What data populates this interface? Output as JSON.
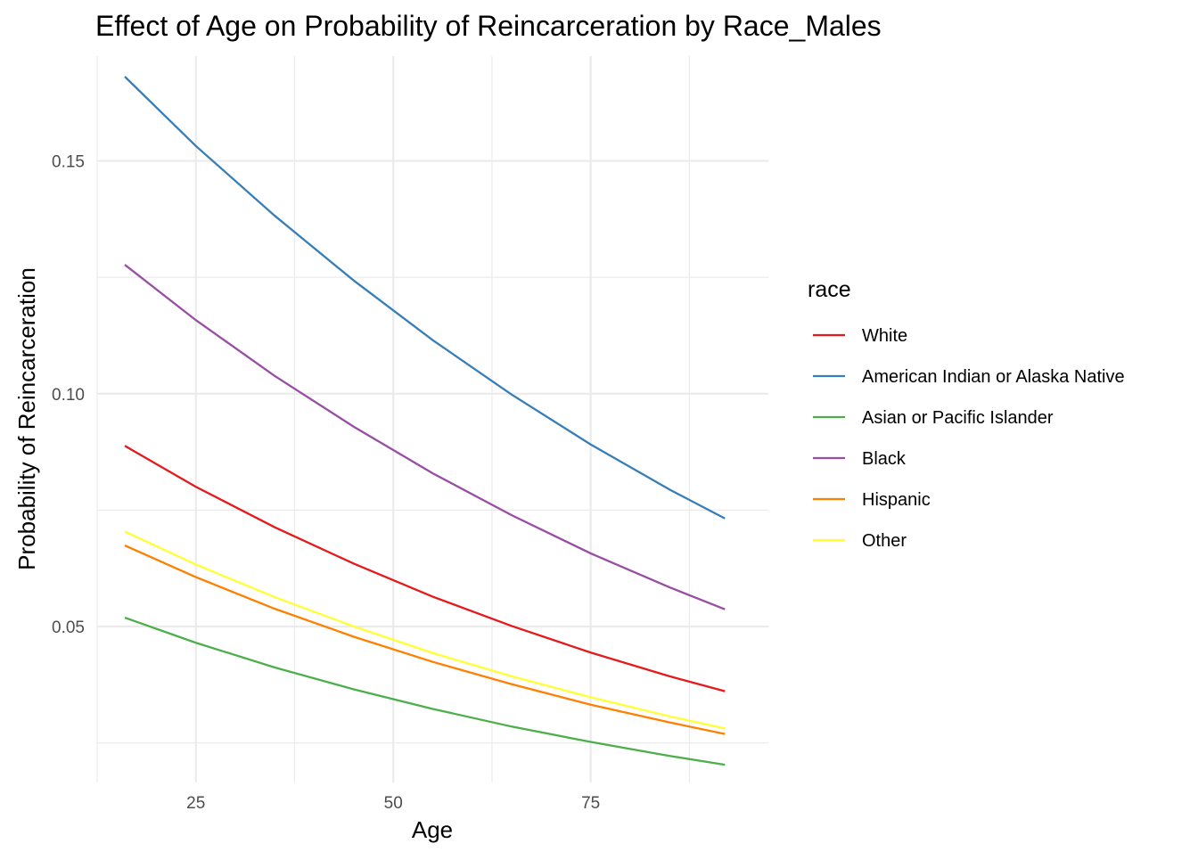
{
  "chart_data": {
    "type": "line",
    "title": "Effect of Age on Probability of Reincarceration by Race_Males",
    "xlabel": "Age",
    "ylabel": "Probability of Reincarceration",
    "x_ticks": [
      25,
      50,
      75
    ],
    "x_tick_labels": [
      "25",
      "50",
      "75"
    ],
    "y_ticks": [
      0.05,
      0.1,
      0.15
    ],
    "y_tick_labels": [
      "0.05",
      "0.10",
      "0.15"
    ],
    "xlim": [
      12.5,
      97.5
    ],
    "ylim": [
      0.0165,
      0.1725
    ],
    "grid": true,
    "legend_position": "right",
    "legend_title": "race",
    "x": [
      16,
      25,
      35,
      45,
      55,
      65,
      75,
      85,
      92
    ],
    "series": [
      {
        "name": "White",
        "color": "#e41a1c",
        "values": [
          0.0888,
          0.08,
          0.0713,
          0.0635,
          0.0564,
          0.0501,
          0.0444,
          0.0393,
          0.0361
        ]
      },
      {
        "name": "American Indian or Alaska Native",
        "color": "#377eb8",
        "values": [
          0.1681,
          0.1532,
          0.1382,
          0.1243,
          0.1115,
          0.0998,
          0.0891,
          0.0794,
          0.0732
        ]
      },
      {
        "name": "Asian or Pacific Islander",
        "color": "#4daf4a",
        "values": [
          0.0519,
          0.0465,
          0.0412,
          0.0365,
          0.0323,
          0.0285,
          0.0252,
          0.0222,
          0.0203
        ]
      },
      {
        "name": "Black",
        "color": "#984ea3",
        "values": [
          0.1277,
          0.1158,
          0.1038,
          0.0929,
          0.0829,
          0.0739,
          0.0657,
          0.0584,
          0.0537
        ]
      },
      {
        "name": "Hispanic",
        "color": "#ff7f00",
        "values": [
          0.0674,
          0.0606,
          0.0538,
          0.0478,
          0.0424,
          0.0376,
          0.0332,
          0.0294,
          0.0269
        ]
      },
      {
        "name": "Other",
        "color": "#ffff33",
        "values": [
          0.0704,
          0.0633,
          0.0563,
          0.05,
          0.0443,
          0.0393,
          0.0348,
          0.0307,
          0.0281
        ]
      }
    ]
  }
}
